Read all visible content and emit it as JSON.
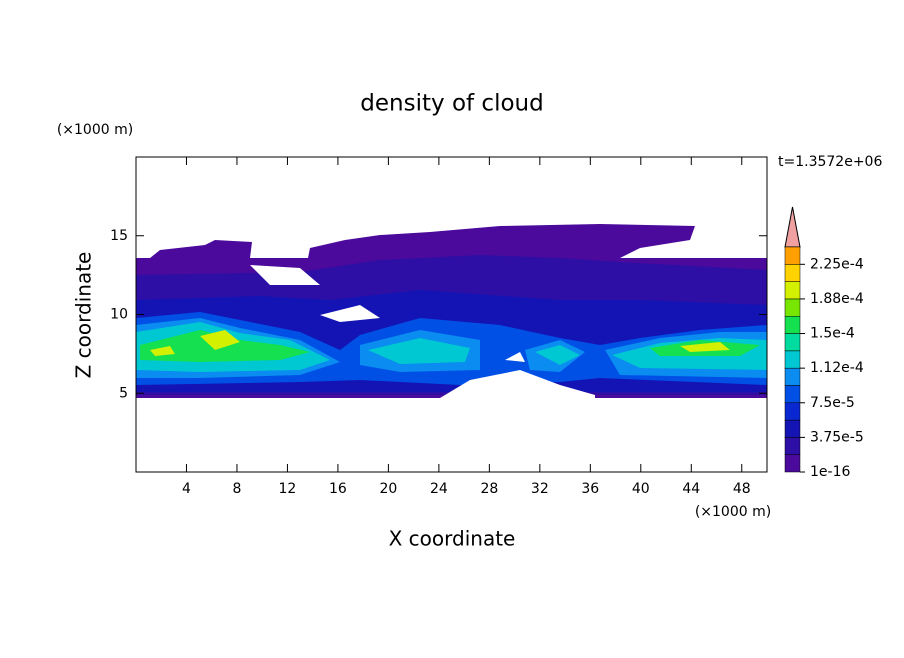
{
  "chart_data": {
    "type": "contour",
    "title": "density of cloud",
    "x_label": "X coordinate",
    "y_label": "Z coordinate",
    "x_unit": "(×1000 m)",
    "y_unit": "(×1000 m)",
    "annotation": "t=1.3572e+06",
    "xlim": [
      0,
      50
    ],
    "xticks": [
      4,
      8,
      12,
      16,
      20,
      24,
      28,
      32,
      36,
      40,
      44,
      48
    ],
    "ylim": [
      0,
      20
    ],
    "yticks": [
      5,
      10,
      15
    ],
    "clim": [
      1e-16,
      0.00024375
    ],
    "cticks": [
      {
        "value": 1e-16,
        "label": "1e-16"
      },
      {
        "value": 3.75e-05,
        "label": "3.75e-5"
      },
      {
        "value": 7.5e-05,
        "label": "7.5e-5"
      },
      {
        "value": 0.0001125,
        "label": "1.12e-4"
      },
      {
        "value": 0.00015,
        "label": "1.5e-4"
      },
      {
        "value": 0.0001875,
        "label": "1.88e-4"
      },
      {
        "value": 0.000225,
        "label": "2.25e-4"
      }
    ],
    "colors": [
      "#4b0a9b",
      "#2d0fa5",
      "#1414b4",
      "#0a28d2",
      "#0050e6",
      "#0a8cf0",
      "#00c8d2",
      "#00dca0",
      "#14e050",
      "#78e600",
      "#d2f000",
      "#ffd200",
      "#ffa000",
      "#ff6400",
      "#ff2800"
    ],
    "extend_color": "#f0a0a0"
  }
}
